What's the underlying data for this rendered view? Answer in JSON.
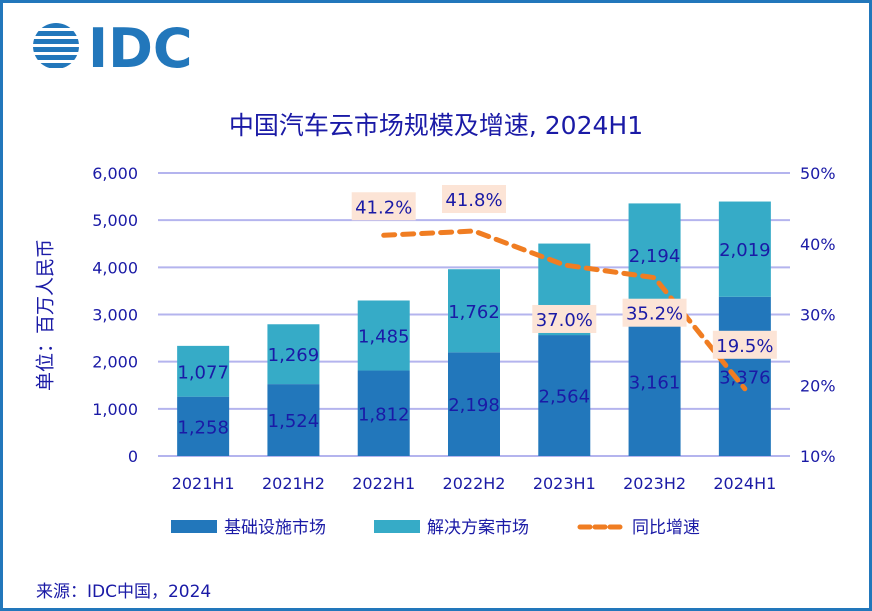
{
  "brand": {
    "logo_text": "IDC",
    "color": "#2277bb"
  },
  "source": "来源：IDC中国，2024",
  "chart_data": {
    "type": "bar",
    "stacked": true,
    "title": "中国汽车云市场规模及增速, 2024H1",
    "ylabel": "单位：百万人民币",
    "xlabel": "",
    "categories": [
      "2021H1",
      "2021H2",
      "2022H1",
      "2022H2",
      "2023H1",
      "2023H2",
      "2024H1"
    ],
    "series": [
      {
        "name": "基础设施市场",
        "type": "bar",
        "axis": "left",
        "color": "#2277bb",
        "values": [
          1258,
          1524,
          1812,
          2198,
          2564,
          3161,
          3376
        ],
        "labels": [
          "1,258",
          "1,524",
          "1,812",
          "2,198",
          "2,564",
          "3,161",
          "3,376"
        ]
      },
      {
        "name": "解决方案市场",
        "type": "bar",
        "axis": "left",
        "color": "#36abc7",
        "values": [
          1077,
          1269,
          1485,
          1762,
          null,
          2194,
          2019
        ],
        "labels": [
          "1,077",
          "1,269",
          "1,485",
          "1,762",
          "",
          "2,194",
          "2,019"
        ]
      },
      {
        "name": "同比增速",
        "type": "line",
        "style": "dashed",
        "axis": "right",
        "color": "#f07d22",
        "values": [
          null,
          null,
          41.2,
          41.8,
          37.0,
          35.2,
          19.5
        ],
        "labels": [
          "",
          "",
          "41.2%",
          "41.8%",
          "37.0%",
          "35.2%",
          "19.5%"
        ]
      }
    ],
    "notes": "2023H1 solution-market segment shown without data label; total bar height approx 4,500",
    "hidden_values": {
      "2023H1_solution_market_approx": 1940
    },
    "ylim": [
      0,
      6000
    ],
    "yticks": [
      "0",
      "1,000",
      "2,000",
      "3,000",
      "4,000",
      "5,000",
      "6,000"
    ],
    "y2lim": [
      10,
      50
    ],
    "y2ticks": [
      "10%",
      "20%",
      "30%",
      "40%",
      "50%"
    ],
    "grid": true,
    "legend": "bottom",
    "label_box_color": "#fce4d6",
    "text_color": "#1a1aa6",
    "grid_color": "#b4b4ee"
  }
}
